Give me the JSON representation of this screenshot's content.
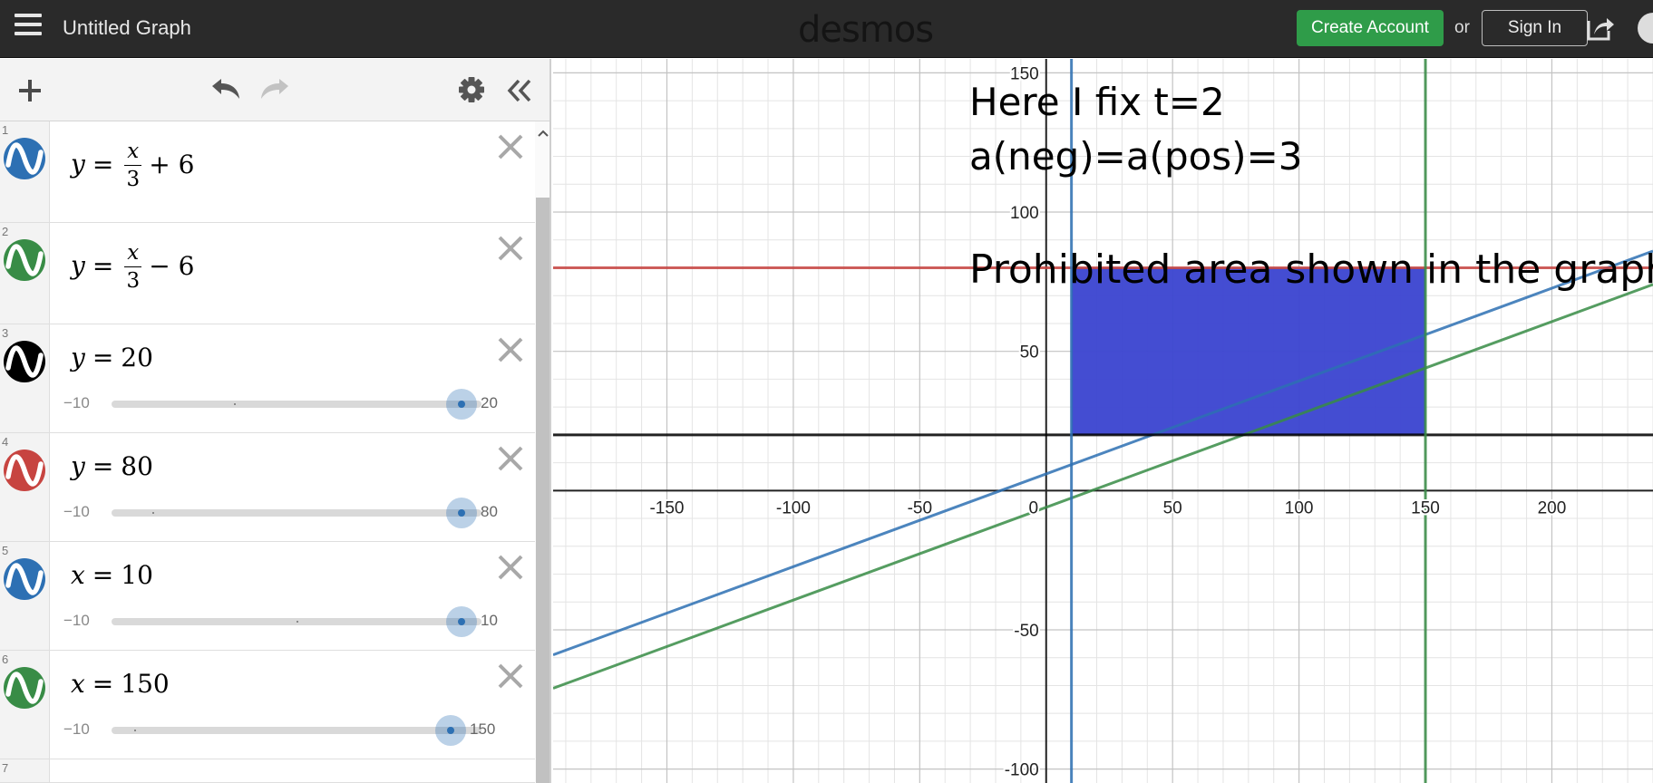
{
  "header": {
    "title": "Untitled Graph",
    "logo": "desmos",
    "create_account": "Create Account",
    "or": "or",
    "sign_in": "Sign In",
    "menu_icon": "hamburger-menu-icon",
    "share_icon": "share-icon"
  },
  "toolbar": {
    "add_icon": "plus-icon",
    "undo_icon": "undo-icon",
    "redo_icon": "redo-icon",
    "settings_icon": "gear-icon",
    "collapse_icon": "double-chevron-left-icon"
  },
  "expressions": [
    {
      "index": "1",
      "color": "#2d70b3",
      "lhs": "y",
      "rhs_const": "+ 6"
    },
    {
      "index": "2",
      "color": "#388c46",
      "lhs": "y",
      "rhs_const": "− 6"
    },
    {
      "index": "3",
      "color": "#000000",
      "lhs": "y",
      "value": "20",
      "slider_min": "−10",
      "slider_max": "20"
    },
    {
      "index": "4",
      "color": "#c74440",
      "lhs": "y",
      "value": "80",
      "slider_min": "−10",
      "slider_max": "80"
    },
    {
      "index": "5",
      "color": "#2d70b3",
      "lhs": "x",
      "value": "10",
      "slider_min": "−10",
      "slider_max": "10"
    },
    {
      "index": "6",
      "color": "#388c46",
      "lhs": "x",
      "value": "150",
      "slider_min": "−10",
      "slider_max": "150"
    },
    {
      "index": "7"
    }
  ],
  "fraction": {
    "numerator": "x",
    "denominator": "3",
    "equals": "="
  },
  "graph": {
    "notes": [
      "Here I fix t=2",
      "a(neg)=a(pos)=3",
      "Prohibited area shown in the graph"
    ],
    "x_ticks": [
      "-150",
      "-100",
      "-50",
      "0",
      "50",
      "100",
      "150",
      "200"
    ],
    "y_ticks": [
      "150",
      "100",
      "50",
      "-50",
      "-100"
    ],
    "region_color": "#3c46d0"
  },
  "chart_data": {
    "type": "line",
    "xlim": [
      -195,
      240
    ],
    "ylim": [
      -105,
      155
    ],
    "grid": true,
    "series": [
      {
        "expression": "y = x/3 + 6",
        "color": "#2d70b3"
      },
      {
        "expression": "y = x/3 - 6",
        "color": "#388c46"
      },
      {
        "expression": "y = 20",
        "color": "#000000"
      },
      {
        "expression": "y = 80",
        "color": "#c74440"
      },
      {
        "expression": "x = 10",
        "color": "#2d70b3"
      },
      {
        "expression": "x = 150",
        "color": "#388c46"
      }
    ],
    "shaded_region": {
      "x": [
        10,
        150
      ],
      "y": [
        20,
        80
      ],
      "color": "#3c46d0"
    }
  }
}
